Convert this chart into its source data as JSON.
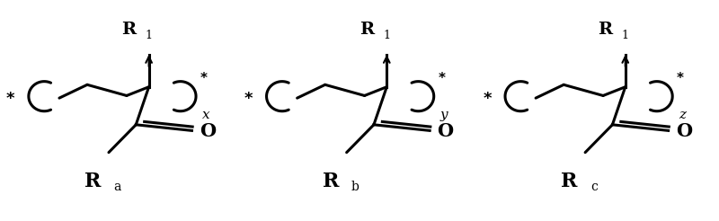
{
  "bg_color": "#ffffff",
  "line_color": "#000000",
  "line_width": 2.2,
  "centers": [
    0.168,
    0.5,
    0.833
  ],
  "subscripts": [
    "x",
    "y",
    "z"
  ],
  "bottom_chars": [
    "a",
    "b",
    "c"
  ]
}
